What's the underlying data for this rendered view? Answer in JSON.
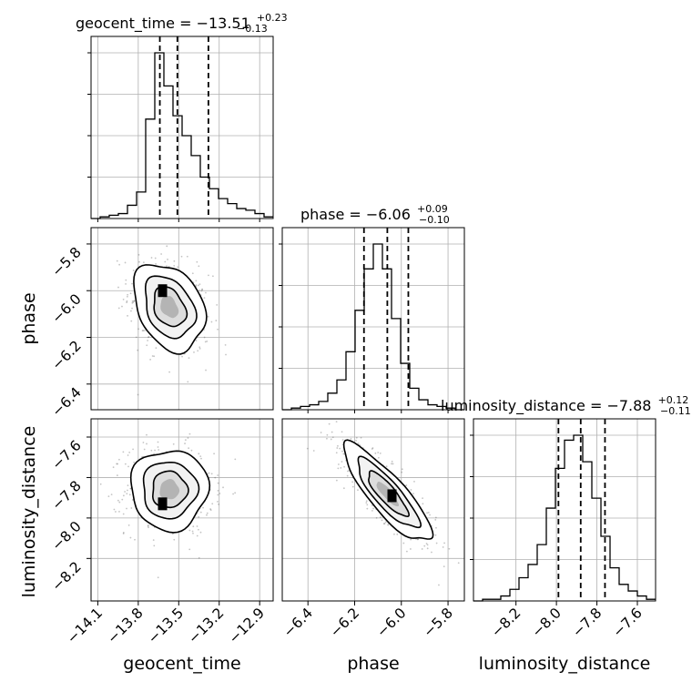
{
  "chart_data": {
    "type": "corner",
    "parameters": [
      "geocent_time",
      "phase",
      "luminosity_distance"
    ],
    "axes": [
      {
        "name": "geocent_time",
        "label": "geocent_time",
        "range": [
          -14.15,
          -12.8
        ],
        "ticks": [
          -14.1,
          -13.8,
          -13.5,
          -13.2,
          -12.9
        ],
        "tick_labels": [
          "−14.1",
          "−13.8",
          "−13.5",
          "−13.2",
          "−12.9"
        ]
      },
      {
        "name": "phase",
        "label": "phase",
        "range": [
          -6.51,
          -5.73
        ],
        "ticks": [
          -6.4,
          -6.2,
          -6.0,
          -5.8
        ],
        "tick_labels": [
          "−6.4",
          "−6.2",
          "−6.0",
          "−5.8"
        ]
      },
      {
        "name": "luminosity_distance",
        "label": "luminosity_distance",
        "range": [
          -8.41,
          -7.51
        ],
        "ticks": [
          -8.2,
          -8.0,
          -7.8,
          -7.6
        ],
        "tick_labels": [
          "−8.2",
          "−8.0",
          "−7.8",
          "−7.6"
        ]
      }
    ],
    "titles": [
      {
        "param": "geocent_time",
        "prefix": "geocent_time = −13.51",
        "plus": "+0.23",
        "minus": "−0.13"
      },
      {
        "param": "phase",
        "prefix": "phase = −6.06",
        "plus": "+0.09",
        "minus": "−0.10"
      },
      {
        "param": "luminosity_distance",
        "prefix": "luminosity_distance = −7.88",
        "plus": "+0.12",
        "minus": "−0.11"
      }
    ],
    "quantiles": {
      "geocent_time": [
        -13.64,
        -13.51,
        -13.28
      ],
      "phase": [
        -6.16,
        -6.06,
        -5.97
      ],
      "luminosity_distance": [
        -7.99,
        -7.88,
        -7.76
      ]
    },
    "histograms": {
      "geocent_time": {
        "bin_start": -14.15,
        "bin_width": 0.0675,
        "counts": [
          0,
          1,
          2,
          3,
          8,
          16,
          60,
          100,
          80,
          62,
          50,
          38,
          25,
          18,
          12,
          9,
          6,
          5,
          3,
          1
        ]
      },
      "phase": {
        "bin_start": -6.51,
        "bin_width": 0.039,
        "counts": [
          0,
          1,
          2,
          3,
          5,
          10,
          18,
          35,
          60,
          85,
          100,
          85,
          55,
          28,
          13,
          6,
          3,
          2,
          1,
          0
        ]
      },
      "luminosity_distance": {
        "bin_start": -8.41,
        "bin_width": 0.045,
        "counts": [
          0,
          1,
          1,
          3,
          7,
          14,
          22,
          34,
          56,
          80,
          97,
          100,
          84,
          62,
          39,
          20,
          10,
          6,
          3,
          1
        ]
      }
    },
    "joint": {
      "phase_vs_geocent_time": {
        "mean": [
          -13.57,
          -6.07
        ],
        "sd": [
          0.12,
          0.085
        ],
        "corr": -0.3,
        "peak": [
          -13.62,
          -6.0
        ]
      },
      "luminosity_distance_vs_geocent_time": {
        "mean": [
          -13.57,
          -7.86
        ],
        "sd": [
          0.13,
          0.09
        ],
        "corr": 0.0,
        "peak": [
          -13.62,
          -7.93
        ]
      },
      "luminosity_distance_vs_phase": {
        "mean": [
          -6.06,
          -7.88
        ],
        "sd": [
          0.085,
          0.11
        ],
        "corr": -0.85,
        "peak": [
          -6.04,
          -7.89
        ]
      }
    },
    "grid": true,
    "colors": {
      "line": "#000000",
      "grid": "#b0b0b0",
      "points": "#555555"
    }
  }
}
